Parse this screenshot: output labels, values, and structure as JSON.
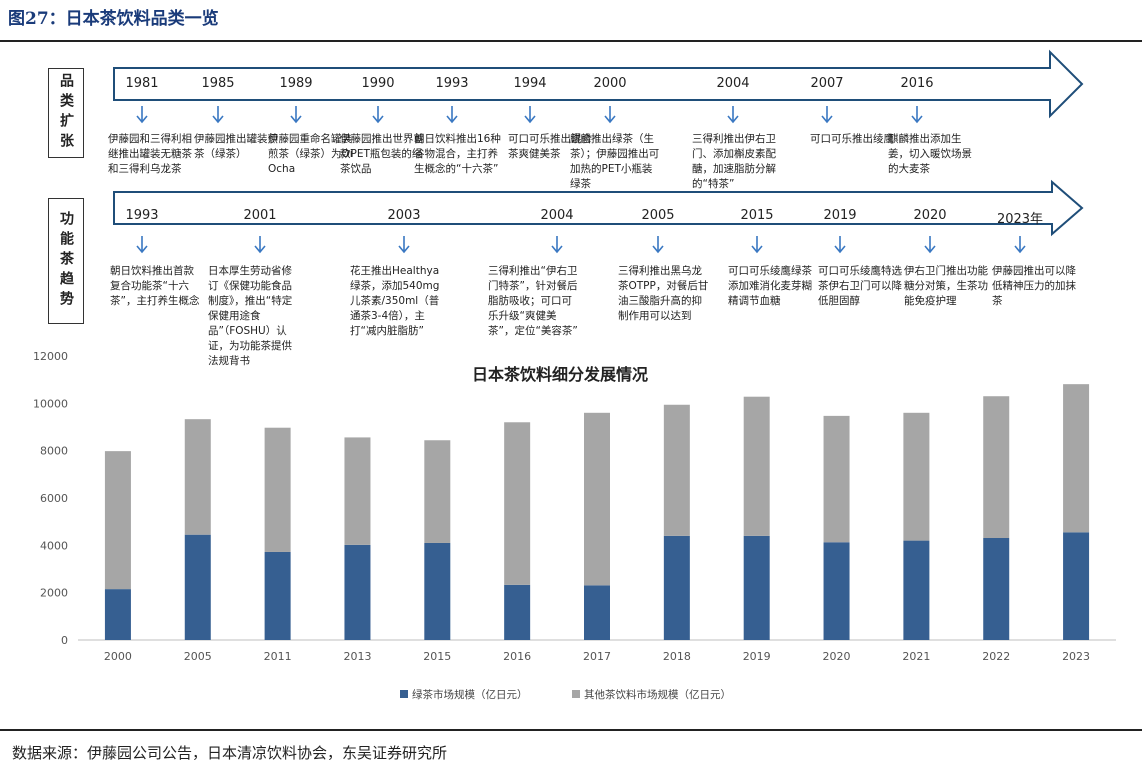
{
  "figure_title": "图27：日本茶饮料品类一览",
  "source_note": "数据来源：伊藤园公司公告，日本清凉饮料协会，东吴证券研究所",
  "colors": {
    "green_tea": "#365f91",
    "other_tea": "#a6a6a6",
    "arrow": "#1f4e79"
  },
  "timeline1": {
    "label": "品类扩张",
    "events": [
      {
        "year": "1981",
        "text": "伊藤园和三得利相继推出罐装无糖茶和三得利乌龙茶"
      },
      {
        "year": "1985",
        "text": "伊藤园推出罐装煎茶（绿茶）"
      },
      {
        "year": "1989",
        "text": "伊藤园重命名罐装煎茶（绿茶）为Oi Ocha"
      },
      {
        "year": "1990",
        "text": "伊藤园推出世界首款PET瓶包装的绿茶饮品"
      },
      {
        "year": "1993",
        "text": "朝日饮料推出16种谷物混合，主打养生概念的“十六茶”"
      },
      {
        "year": "1994",
        "text": "可口可乐推出混合茶爽健美茶"
      },
      {
        "year": "2000",
        "text": "麒麟推出绿茶（生茶）；伊藤园推出可加热的PET小瓶装绿茶"
      },
      {
        "year": "2004",
        "text": "三得利推出伊右卫门、添加槲皮素配醣，加速脂肪分解的“特茶”"
      },
      {
        "year": "2007",
        "text": "可口可乐推出绫鹰"
      },
      {
        "year": "2016",
        "text": "麒麟推出添加生姜，切入暖饮场景的大麦茶"
      }
    ]
  },
  "timeline2": {
    "label": "功能茶趋势",
    "events": [
      {
        "year": "1993",
        "text": "朝日饮料推出首款复合功能茶“十六茶”，主打养生概念"
      },
      {
        "year": "2001",
        "text": "日本厚生劳动省修订《保健功能食品制度》，推出“特定保健用途食品”（FOSHU）认证，为功能茶提供法规背书"
      },
      {
        "year": "2003",
        "text": "花王推出Healthya绿茶，添加540mg儿茶素/350ml（普通茶3-4倍），主打“减内脏脂肪”"
      },
      {
        "year": "2004",
        "text": "三得利推出“伊右卫门特茶”，针对餐后脂肪吸收；可口可乐升级“爽健美茶”，定位“美容茶”"
      },
      {
        "year": "2005",
        "text": "三得利推出黑乌龙茶OTPP，对餐后甘油三酸脂升高的抑制作用可以达到"
      },
      {
        "year": "2015",
        "text": "可口可乐绫鹰绿茶添加难消化麦芽糊精调节血糖"
      },
      {
        "year": "2019",
        "text": "可口可乐绫鹰特选茶伊右卫门可以降低胆固醇"
      },
      {
        "year": "2020",
        "text": "伊右卫门推出功能糖分对策，生茶功能免疫护理"
      },
      {
        "year": "2023年",
        "text": "伊藤园推出可以降低精神压力的加抹茶"
      }
    ]
  },
  "chart_data": {
    "type": "bar",
    "stacked": true,
    "title": "日本茶饮料细分发展情况",
    "categories": [
      "2000",
      "2005",
      "2011",
      "2013",
      "2015",
      "2016",
      "2017",
      "2018",
      "2019",
      "2020",
      "2021",
      "2022",
      "2023"
    ],
    "series": [
      {
        "name": "绿茶市场规模（亿日元）",
        "values": [
          2150,
          4450,
          3720,
          4020,
          4100,
          2330,
          2310,
          4400,
          4400,
          4130,
          4200,
          4310,
          4550
        ]
      },
      {
        "name": "其他茶饮料市场规模（亿日元）",
        "values": [
          5830,
          4880,
          5250,
          4540,
          4340,
          6870,
          7290,
          5540,
          5880,
          5340,
          5400,
          5990,
          6260
        ]
      }
    ],
    "ylim": [
      0,
      12000
    ],
    "yticks": [
      "0",
      "2000",
      "4000",
      "6000",
      "8000",
      "10000",
      "12000"
    ],
    "legend": "bottom"
  }
}
